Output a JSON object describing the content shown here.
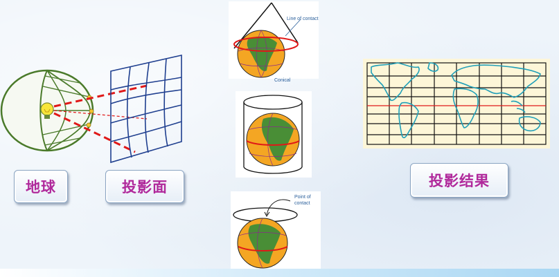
{
  "labels": {
    "earth": "地球",
    "projection_surface": "投影面",
    "projection_result": "投影结果"
  },
  "panels": {
    "conical": {
      "contact_label": "Line of contact",
      "caption": "Conical"
    },
    "azimuthal": {
      "contact_label_line1": "Point of",
      "contact_label_line2": "contact"
    }
  },
  "colors": {
    "label_text": "#b0299b",
    "ocean": "#f4a623",
    "land": "#2a8a3a",
    "equator": "#e01818",
    "map_panel": "#fdf6d8",
    "map_coast": "#1f9fb8",
    "projection_rays": "#e01818",
    "globe_outline": "#4a7a2a"
  },
  "icons": [
    "light-bulb-icon"
  ]
}
